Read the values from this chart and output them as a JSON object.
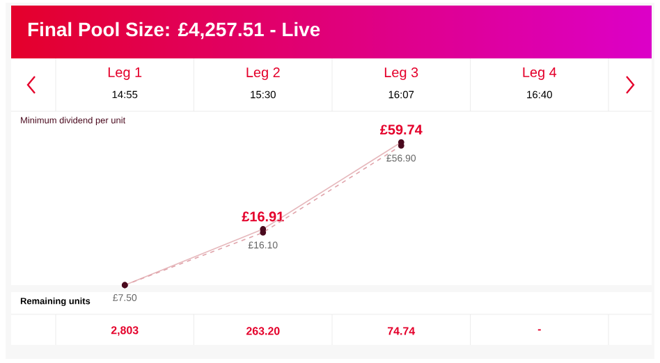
{
  "chart_data": {
    "type": "line",
    "title": "Final Pool Size: £4,257.51 - Live",
    "categories": [
      "Leg 1",
      "Leg 2",
      "Leg 3",
      "Leg 4"
    ],
    "log": true,
    "marker": "circle",
    "series": [
      {
        "color": "#e6b8bc",
        "line_style": "solid",
        "values": [
          7.5,
          16.91,
          59.74,
          null
        ],
        "value_labels": [
          null,
          "£16.91",
          "£59.74",
          null
        ]
      },
      {
        "color": "#e0a4ab",
        "line_style": "dashed",
        "values": [
          7.5,
          16.1,
          56.9,
          null
        ],
        "value_labels": [
          "£7.50",
          "£16.10",
          "£56.90",
          null
        ]
      }
    ],
    "annotations": [
      "14:55",
      "15:30",
      "16:07",
      "16:40",
      "Minimum dividend per unit",
      "Remaining units",
      "2,803",
      "263.20",
      "74.74",
      "-"
    ]
  }
}
